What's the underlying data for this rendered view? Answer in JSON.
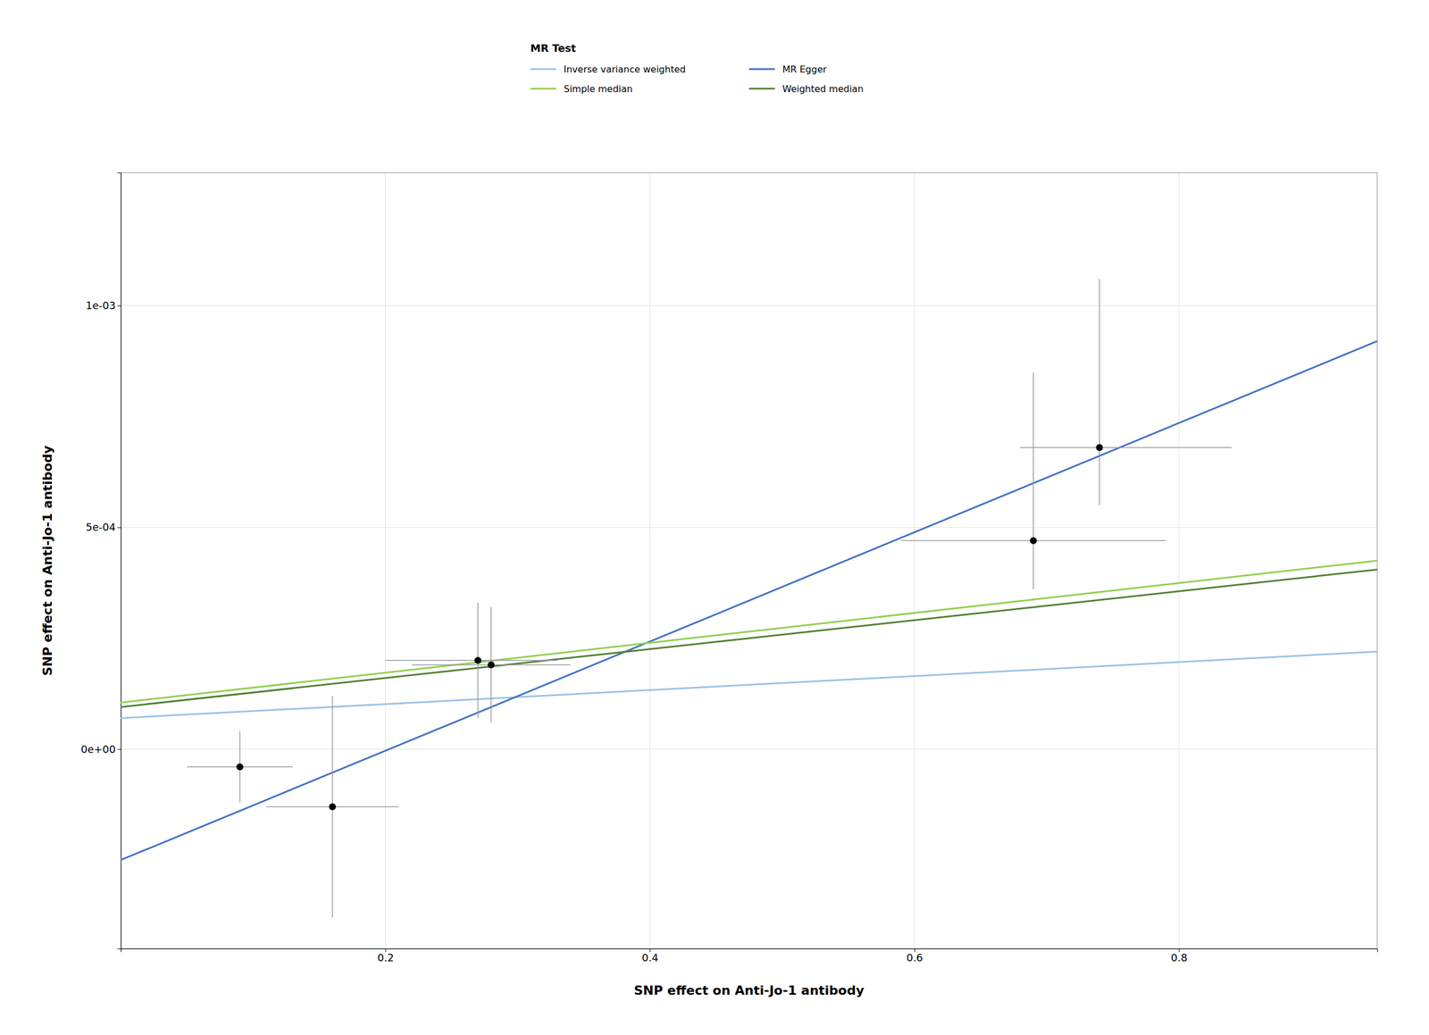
{
  "chart_data": {
    "type": "scatter",
    "x_label": "SNP effect on Anti-Jo-1 antibody",
    "y_label": "SNP effect on Anti-Jo-1 antibody",
    "xlim": [
      0.0,
      0.95
    ],
    "ylim": [
      -0.00045,
      0.0013
    ],
    "xticks": [
      0.2,
      0.4,
      0.6,
      0.8
    ],
    "yticks": [
      {
        "value": 0.0,
        "label": "0e+00"
      },
      {
        "value": 0.0005,
        "label": "5e-04"
      },
      {
        "value": 0.001,
        "label": "1e-03"
      }
    ],
    "grid": true,
    "legend": "top",
    "legend_title": "MR Test",
    "series": [
      {
        "name": "Inverse variance weighted",
        "type": "line",
        "color": "#9DC3E6",
        "x": [
          0.0,
          0.95
        ],
        "values": [
          7e-05,
          0.00022
        ]
      },
      {
        "name": "MR Egger",
        "type": "line",
        "color": "#4472C4",
        "x": [
          0.0,
          0.95
        ],
        "values": [
          -0.00025,
          0.00092
        ]
      },
      {
        "name": "Simple median",
        "type": "line",
        "color": "#92D050",
        "x": [
          0.0,
          0.95
        ],
        "values": [
          0.000105,
          0.000425
        ]
      },
      {
        "name": "Weighted median",
        "type": "line",
        "color": "#538135",
        "x": [
          0.0,
          0.95
        ],
        "values": [
          9.5e-05,
          0.000405
        ]
      },
      {
        "type": "scatter",
        "color": "black",
        "marker": "circle",
        "x": [
          0.09,
          0.16,
          0.27,
          0.28,
          0.69,
          0.74
        ],
        "values": [
          -4e-05,
          -0.00013,
          0.0002,
          0.00019,
          0.00047,
          0.00068
        ],
        "x_error_low": [
          0.04,
          0.05,
          0.07,
          0.06,
          0.1,
          0.06
        ],
        "x_error_high": [
          0.04,
          0.05,
          0.06,
          0.06,
          0.1,
          0.1
        ],
        "y_error_low": [
          8e-05,
          0.00025,
          0.00013,
          0.00013,
          0.00011,
          0.00013
        ],
        "y_error_high": [
          8e-05,
          0.00025,
          0.00013,
          0.00013,
          0.00038,
          0.00038
        ]
      }
    ]
  }
}
